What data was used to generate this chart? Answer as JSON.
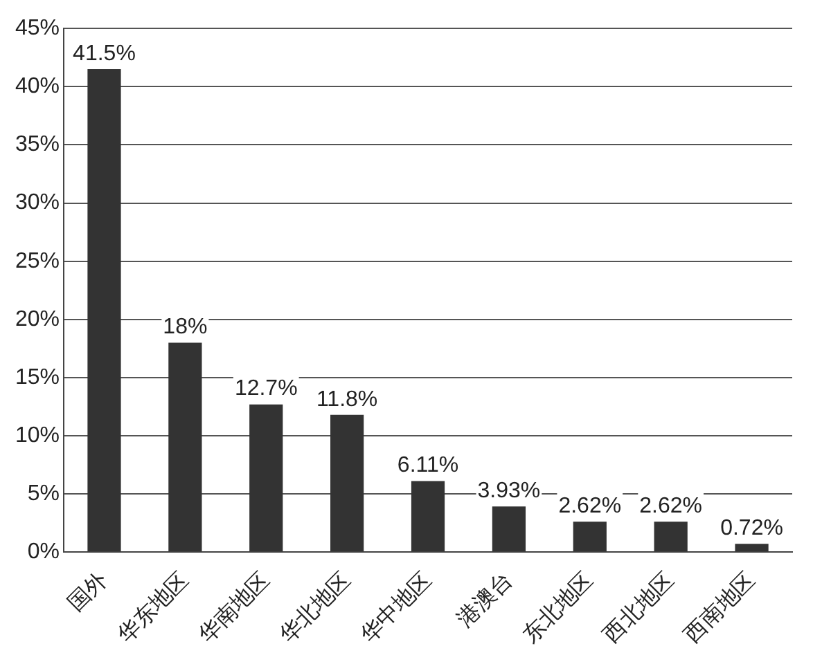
{
  "chart_data": {
    "type": "bar",
    "categories": [
      "国外",
      "华东地区",
      "华南地区",
      "华北地区",
      "华中地区",
      "港澳台",
      "东北地区",
      "西北地区",
      "西南地区"
    ],
    "values": [
      41.5,
      18,
      12.7,
      11.8,
      6.11,
      3.93,
      2.62,
      2.62,
      0.72
    ],
    "value_labels": [
      "41.5%",
      "18%",
      "12.7%",
      "11.8%",
      "6.11%",
      "3.93%",
      "2.62%",
      "2.62%",
      "0.72%"
    ],
    "color": "#333333",
    "ylim": [
      0,
      45
    ],
    "yticks": [
      {
        "value": 0,
        "label": "0%"
      },
      {
        "value": 5,
        "label": "5%"
      },
      {
        "value": 10,
        "label": "10%"
      },
      {
        "value": 15,
        "label": "15%"
      },
      {
        "value": 20,
        "label": "20%"
      },
      {
        "value": 25,
        "label": "25%"
      },
      {
        "value": 30,
        "label": "30%"
      },
      {
        "value": 35,
        "label": "35%"
      },
      {
        "value": 40,
        "label": "40%"
      },
      {
        "value": 45,
        "label": "45%"
      }
    ],
    "grid": "y",
    "legend": false
  }
}
